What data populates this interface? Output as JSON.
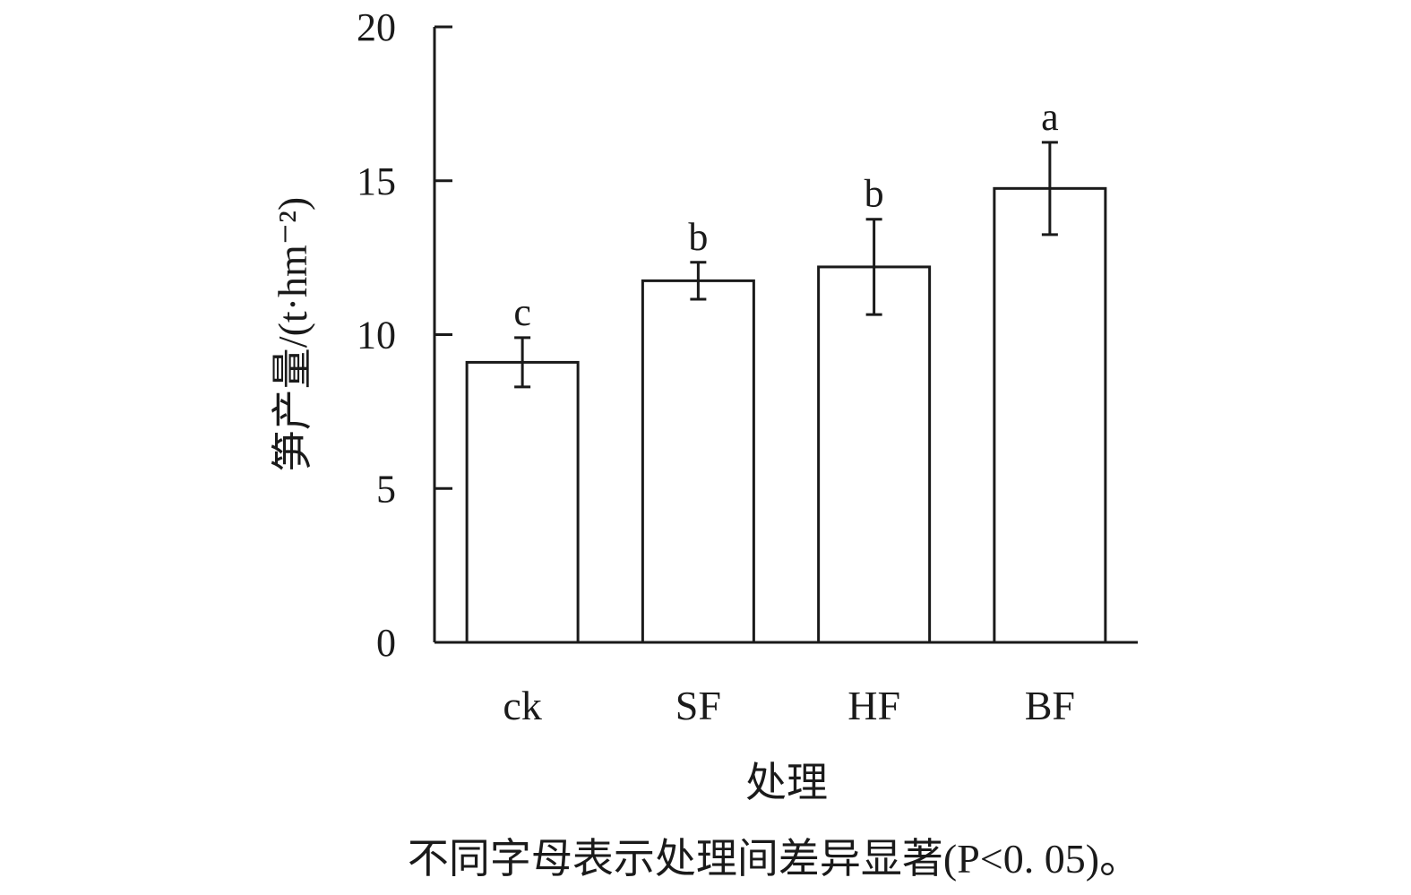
{
  "chart_data": {
    "type": "bar",
    "categories": [
      "ck",
      "SF",
      "HF",
      "BF"
    ],
    "values": [
      9.1,
      11.75,
      12.2,
      14.75
    ],
    "error": [
      0.8,
      0.6,
      1.55,
      1.5
    ],
    "significance": [
      "c",
      "b",
      "b",
      "a"
    ],
    "xlabel": "处理",
    "ylabel": "笋产量/(t·hm⁻²)",
    "ylim": [
      0,
      20
    ],
    "yticks": [
      "0",
      "5",
      "10",
      "15",
      "20"
    ],
    "note": "不同字母表示处理间差异显著(P<0. 05)。",
    "grid": false,
    "bar_fill": "#ffffff",
    "stroke_color": "#1a1a1a"
  }
}
